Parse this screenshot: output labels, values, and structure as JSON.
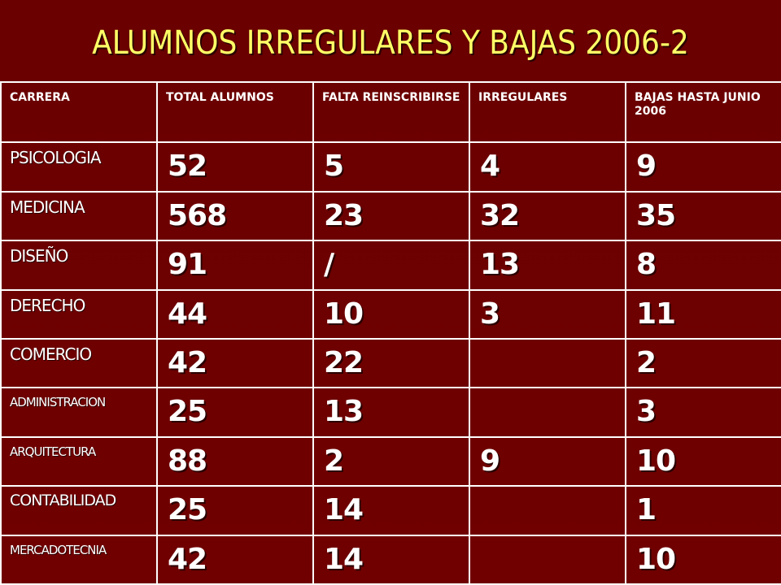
{
  "title": "ALUMNOS IRREGULARES Y BAJAS 2006-2",
  "colors": {
    "background": "#6e0000",
    "title": "#ffff66",
    "text": "#ffffff",
    "grid": "#ffffff"
  },
  "table": {
    "headers": [
      "CARRERA",
      "TOTAL ALUMNOS",
      "FALTA REINSCRIBIRSE",
      "IRREGULARES",
      "BAJAS HASTA JUNIO 2006"
    ],
    "rows": [
      {
        "carrera": "PSICOLOGIA",
        "total": "52",
        "falta": "5",
        "irregulares": "4",
        "bajas": "9"
      },
      {
        "carrera": "MEDICINA",
        "total": "568",
        "falta": "23",
        "irregulares": "32",
        "bajas": "35"
      },
      {
        "carrera": "DISEÑO",
        "total": "91",
        "falta": "/",
        "irregulares": "13",
        "bajas": "8"
      },
      {
        "carrera": "DERECHO",
        "total": "44",
        "falta": "10",
        "irregulares": "3",
        "bajas": "11"
      },
      {
        "carrera": "COMERCIO",
        "total": "42",
        "falta": "22",
        "irregulares": "",
        "bajas": "2"
      },
      {
        "carrera": "ADMINISTRACION",
        "total": "25",
        "falta": "13",
        "irregulares": "",
        "bajas": "3"
      },
      {
        "carrera": "ARQUITECTURA",
        "total": "88",
        "falta": "2",
        "irregulares": "9",
        "bajas": "10"
      },
      {
        "carrera": "CONTABILIDAD",
        "total": "25",
        "falta": "14",
        "irregulares": "",
        "bajas": "1"
      },
      {
        "carrera": "MERCADOTECNIA",
        "total": "42",
        "falta": "14",
        "irregulares": "",
        "bajas": "10"
      }
    ]
  }
}
